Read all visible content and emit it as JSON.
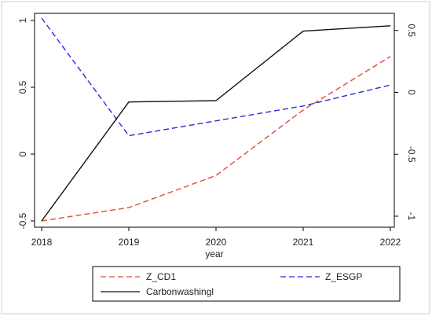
{
  "chart_data": {
    "type": "line",
    "x": [
      2018,
      2019,
      2020,
      2021,
      2022
    ],
    "xlabel": "year",
    "xticks": [
      "2018",
      "2019",
      "2020",
      "2021",
      "2022"
    ],
    "y_left": {
      "ylim": [
        -0.5,
        1
      ],
      "ticks": [
        -0.5,
        0,
        0.5,
        1
      ],
      "tick_labels": [
        "-0.5",
        "0",
        "0.5",
        "1"
      ]
    },
    "y_right": {
      "ylim": [
        -1,
        0.6
      ],
      "ticks": [
        -1,
        -0.5,
        0,
        0.5
      ],
      "tick_labels": [
        "-1",
        "-0.5",
        "0",
        "0.5"
      ]
    },
    "series": [
      {
        "name": "Z_CD1",
        "axis": "left",
        "color": "#e04a3a",
        "dash": "dashed",
        "values": [
          -0.5,
          -0.4,
          -0.16,
          0.33,
          0.73
        ]
      },
      {
        "name": "Z_ESGP",
        "axis": "right",
        "color": "#2b2bd6",
        "dash": "dashed",
        "values": [
          0.6,
          -0.35,
          -0.23,
          -0.11,
          0.06
        ]
      },
      {
        "name": "Carbonwashingl",
        "axis": "left",
        "color": "#111111",
        "dash": "solid",
        "values": [
          -0.5,
          0.39,
          0.4,
          0.92,
          0.96
        ]
      }
    ],
    "grid": false,
    "legend_position": "bottom"
  }
}
